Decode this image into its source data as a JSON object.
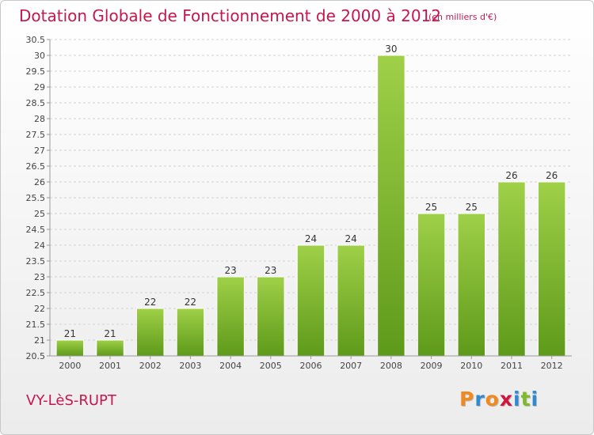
{
  "header": {
    "title": "Dotation Globale de Fonctionnement de 2000 à 2012",
    "unit_note": "(en milliers d'€)"
  },
  "footer": {
    "commune": "VY-LèS-RUPT",
    "brand_letters": [
      "P",
      "r",
      "o",
      "x",
      "i",
      "t",
      "i"
    ],
    "brand_colors": [
      "#f08a1c",
      "#2f8ad2",
      "#f08a1c",
      "#d0163f",
      "#2f8ad2",
      "#7db928",
      "#2f8ad2"
    ]
  },
  "colors": {
    "accent": "#c5174f",
    "bar_top": "#9fd048",
    "bar_bottom": "#5e9a1a"
  },
  "chart_data": {
    "type": "bar",
    "categories": [
      "2000",
      "2001",
      "2002",
      "2003",
      "2004",
      "2005",
      "2006",
      "2007",
      "2008",
      "2009",
      "2010",
      "2011",
      "2012"
    ],
    "values": [
      21,
      21,
      22,
      22,
      23,
      23,
      24,
      24,
      30,
      25,
      25,
      26,
      26
    ],
    "value_labels": [
      "21",
      "21",
      "22",
      "22",
      "23",
      "23",
      "24",
      "24",
      "30",
      "25",
      "25",
      "26",
      "26"
    ],
    "ylim": [
      20.5,
      30.5
    ],
    "yticks": [
      "20.5",
      "21",
      "21.5",
      "22",
      "22.5",
      "23",
      "23.5",
      "24",
      "24.5",
      "25",
      "25.5",
      "26",
      "26.5",
      "27",
      "27.5",
      "28",
      "28.5",
      "29",
      "29.5",
      "30",
      "30.5"
    ],
    "grid": true,
    "legend": "none"
  }
}
